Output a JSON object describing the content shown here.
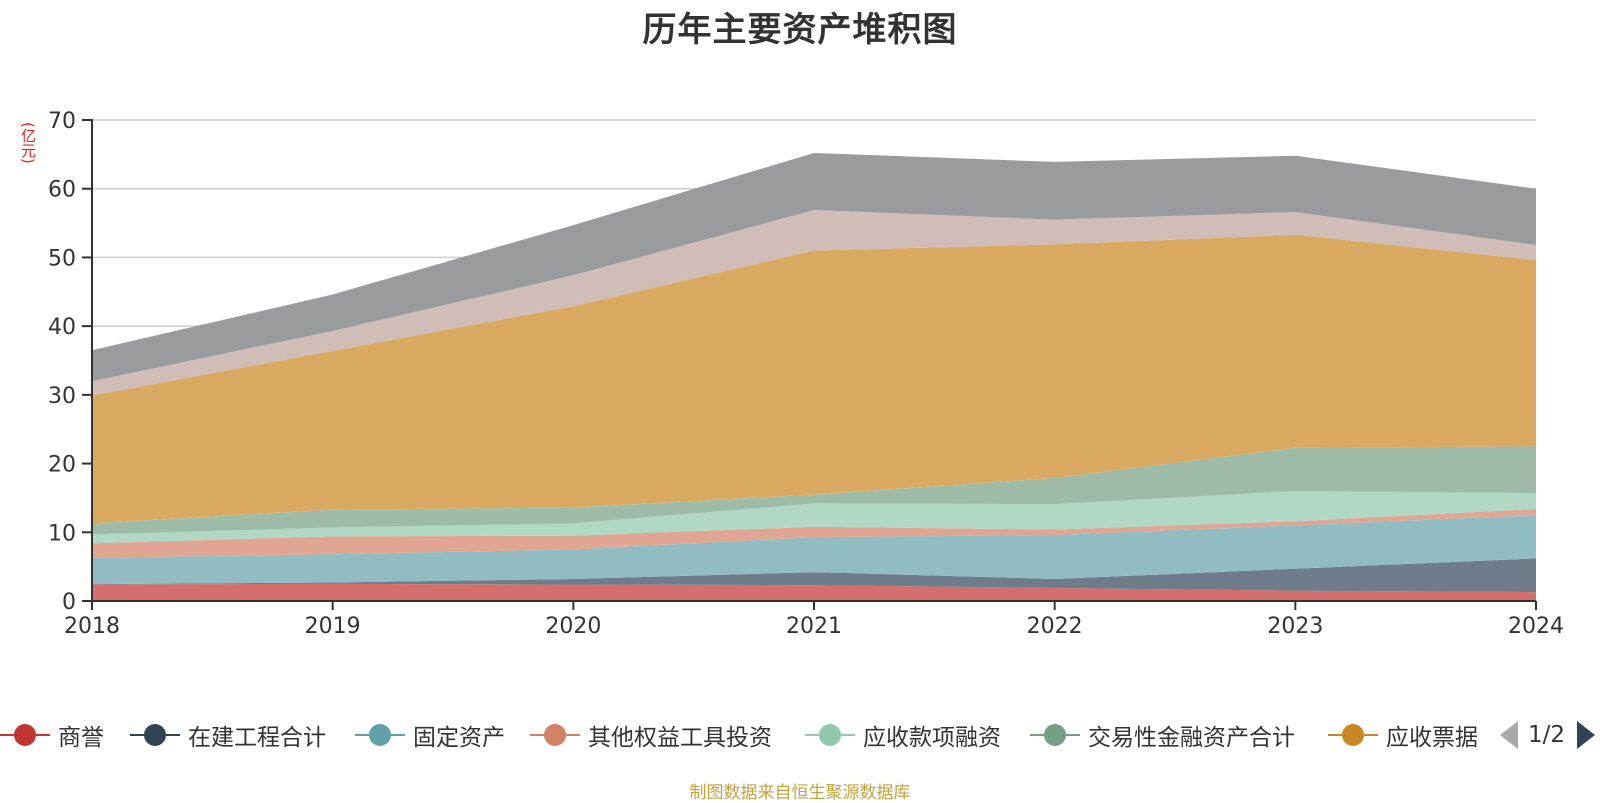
{
  "title": "历年主要资产堆积图",
  "footer": "制图数据来自恒生聚源数据库",
  "legend_pager": "1/2",
  "chart_data": {
    "type": "area",
    "stacked": true,
    "title": "历年主要资产堆积图",
    "ylabel": "(亿元)",
    "xlabel": "",
    "ylim": [
      0,
      70
    ],
    "yticks": [
      0,
      10,
      20,
      30,
      40,
      50,
      60,
      70
    ],
    "grid": true,
    "legend_position": "bottom",
    "categories": [
      "2018",
      "2019",
      "2020",
      "2021",
      "2022",
      "2023",
      "2024"
    ],
    "series": [
      {
        "name": "商誉",
        "color": "#c23531",
        "fill": "#d56f6d",
        "values": [
          2.4,
          2.5,
          2.4,
          2.3,
          1.9,
          1.5,
          1.3
        ]
      },
      {
        "name": "在建工程合计",
        "color": "#2f4554",
        "fill": "#6e7d89",
        "values": [
          0.05,
          0.2,
          0.8,
          1.9,
          1.3,
          3.2,
          4.9
        ]
      },
      {
        "name": "固定资产",
        "color": "#61a0a8",
        "fill": "#90bcc2",
        "values": [
          3.85,
          4.1,
          4.3,
          5.1,
          6.4,
          6.3,
          6.3
        ]
      },
      {
        "name": "其他权益工具投资",
        "color": "#d48265",
        "fill": "#e1a593",
        "values": [
          2.1,
          2.6,
          2.0,
          1.5,
          0.8,
          0.6,
          0.9
        ]
      },
      {
        "name": "应收款项融资",
        "color": "#91c7ae",
        "fill": "#b0d8c5",
        "values": [
          1.3,
          1.3,
          1.8,
          3.4,
          3.7,
          4.4,
          2.3
        ]
      },
      {
        "name": "交易性金融资产合计",
        "color": "#749f83",
        "fill": "#9dbba7",
        "values": [
          1.6,
          2.6,
          2.3,
          1.3,
          3.8,
          6.3,
          6.8
        ]
      },
      {
        "name": "应收票据",
        "color": "#ca8622",
        "fill": "#d9a962",
        "values": [
          18.6,
          23.1,
          29.3,
          35.5,
          34.0,
          31.0,
          27.1
        ]
      },
      {
        "name": "",
        "color": "#bda29a",
        "fill": "#d0bdb8",
        "values": [
          2.1,
          2.9,
          4.5,
          5.9,
          3.6,
          3.3,
          2.2
        ]
      },
      {
        "name": "",
        "color": "#6e7074",
        "fill": "#9a9b9e",
        "values": [
          4.5,
          5.3,
          7.3,
          8.3,
          8.4,
          8.2,
          8.2
        ]
      }
    ]
  }
}
